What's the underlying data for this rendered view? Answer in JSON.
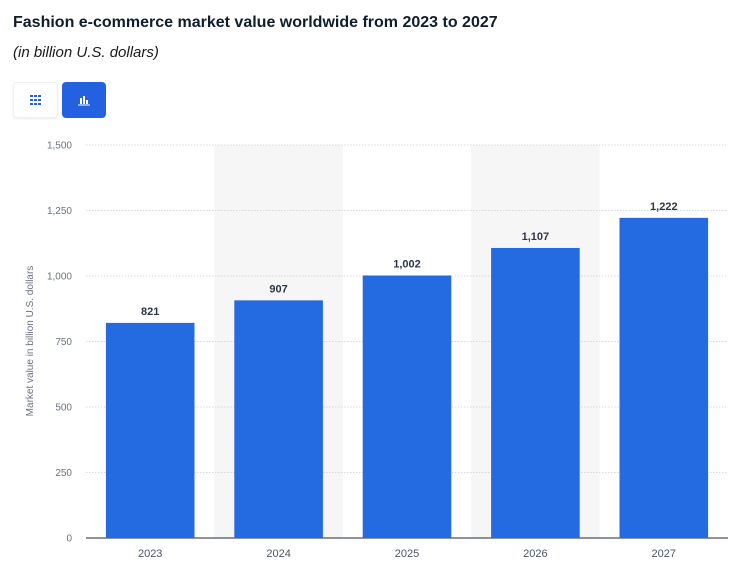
{
  "header": {
    "title": "Fashion e-commerce market value worldwide from 2023 to 2027",
    "subtitle": "(in billion U.S. dollars)"
  },
  "toolbar": {
    "table_view_icon": "grid-icon",
    "chart_view_icon": "bar-chart-icon",
    "active_view": "chart"
  },
  "colors": {
    "bar": "#246ae0",
    "accent": "#2461e0",
    "band": "#f6f6f6",
    "grid": "#c9ced6"
  },
  "chart_data": {
    "type": "bar",
    "categories": [
      "2023",
      "2024",
      "2025",
      "2026",
      "2027"
    ],
    "values": [
      821,
      907,
      1002,
      1107,
      1222
    ],
    "value_labels": [
      "821",
      "907",
      "1,002",
      "1,107",
      "1,222"
    ],
    "ylabel": "Market value in billion U.S. dollars",
    "xlabel": "",
    "ylim": [
      0,
      1500
    ],
    "yticks": [
      0,
      250,
      500,
      750,
      1000,
      1250,
      1500
    ],
    "ytick_labels": [
      "0",
      "250",
      "500",
      "750",
      "1,000",
      "1,250",
      "1,500"
    ],
    "grid": true
  }
}
